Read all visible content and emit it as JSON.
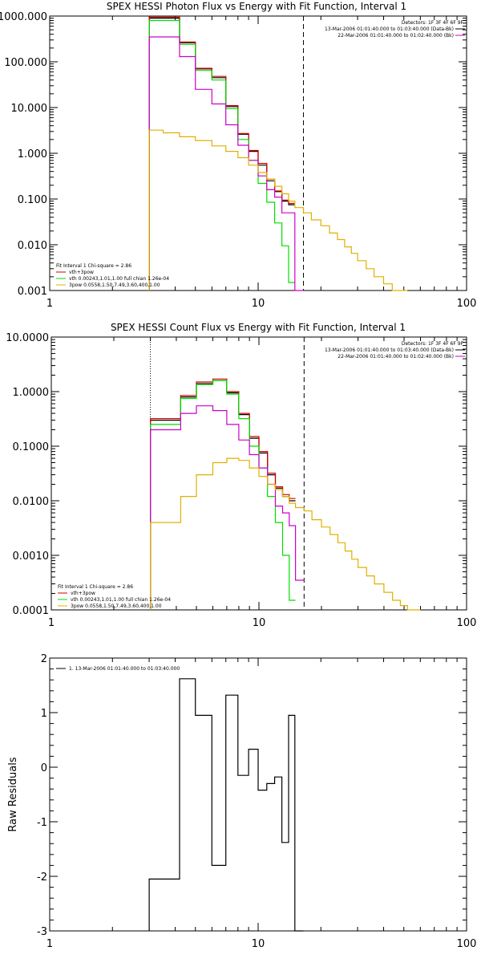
{
  "colors": {
    "background": "#ffffff",
    "axis": "#000000",
    "black": "#000000",
    "red": "#d40000",
    "green": "#00dd00",
    "magenta": "#cc00cc",
    "gold": "#e0b000",
    "orange": "#ff8c00"
  },
  "chart_data": [
    {
      "type": "line",
      "title": "SPEX HESSI Photon Flux vs Energy with Fit Function, Interval 1",
      "xlabel": "",
      "ylabel": "",
      "xscale": "log",
      "yscale": "log",
      "xlim": [
        1,
        100
      ],
      "ylim": [
        0.001,
        1000
      ],
      "x_ticks": [
        1,
        10,
        100
      ],
      "x_tick_labels": [
        "1",
        "10",
        "100"
      ],
      "y_ticks": [
        0.001,
        0.01,
        0.1,
        1,
        10,
        100,
        1000
      ],
      "y_tick_labels": [
        "0.001",
        "0.010",
        "0.100",
        "1.000",
        "10.000",
        "100.000",
        "1000.000"
      ],
      "legend_topright": [
        "Detectors: 1F 3F 4F 6F 9F",
        "13-Mar-2006 01:01:40.000 to 01:03:40.000 (Data-Bk)",
        "22-Mar-2006 01:01:40.000 to 01:02:40.000 (Bk)"
      ],
      "legend_bottomleft": [
        "Fit Interval 1   Chi-square = 2.86",
        "vth+3pow",
        "vth 0.00243,1.01,1.00  full chian 1.26e-04",
        "3pow 0.0558,1.50,7.49,3.60,400,1.00"
      ],
      "edges": [
        3,
        3.5,
        4.2,
        5,
        6,
        7,
        8,
        9,
        10,
        11,
        12,
        13,
        14,
        15,
        16.5,
        18,
        20,
        22,
        24,
        26,
        28,
        30,
        33,
        36,
        40,
        44,
        48,
        52
      ],
      "series": [
        {
          "color": "black",
          "values": [
            900,
            900,
            260,
            70,
            45,
            10.5,
            2.6,
            1.1,
            0.55,
            0.25,
            0.145,
            0.09,
            0.075,
            null
          ]
        },
        {
          "color": "red",
          "values": [
            950,
            950,
            270,
            72,
            48,
            11,
            2.7,
            1.15,
            0.6,
            0.27,
            0.15,
            0.095,
            0.08,
            null
          ]
        },
        {
          "color": "green",
          "values": [
            800,
            800,
            240,
            65,
            40,
            9.5,
            2.0,
            0.7,
            0.22,
            0.085,
            0.03,
            0.0095,
            0.0015,
            null
          ]
        },
        {
          "color": "magenta",
          "values": [
            350,
            350,
            130,
            25,
            12,
            4.2,
            1.5,
            0.7,
            0.32,
            0.16,
            0.11,
            0.05,
            0.05,
            0.001
          ]
        },
        {
          "color": "gold",
          "values": [
            3.2,
            2.8,
            2.3,
            1.9,
            1.45,
            1.1,
            0.8,
            0.55,
            0.38,
            0.27,
            0.19,
            0.13,
            0.09,
            0.065,
            0.05,
            0.035,
            0.026,
            0.018,
            0.013,
            0.009,
            0.0065,
            0.0045,
            0.003,
            0.002,
            0.0014,
            0.001,
            0.0008
          ]
        }
      ],
      "vlines": [
        {
          "x": 3,
          "style": "dotted"
        },
        {
          "x": 16.5,
          "style": "dashed"
        }
      ]
    },
    {
      "type": "line",
      "title": "SPEX HESSI Count Flux vs Energy with Fit Function, Interval 1",
      "xlabel": "",
      "ylabel": "",
      "xscale": "log",
      "yscale": "log",
      "xlim": [
        1,
        100
      ],
      "ylim": [
        0.0001,
        10
      ],
      "x_ticks": [
        1,
        10,
        100
      ],
      "x_tick_labels": [
        "1",
        "10",
        "100"
      ],
      "y_ticks": [
        0.0001,
        0.001,
        0.01,
        0.1,
        1,
        10
      ],
      "y_tick_labels": [
        "0.0001",
        "0.0010",
        "0.0100",
        "0.1000",
        "1.0000",
        "10.0000"
      ],
      "legend_topright": [
        "Detectors: 1F 3F 4F 6F 9F",
        "13-Mar-2006 01:01:40.000 to 01:03:40.000 (Data-Bk)",
        "22-Mar-2006 01:01:40.000 to 01:02:40.000 (Bk)"
      ],
      "legend_bottomleft": [
        "Fit Interval 1   Chi-square = 2.86",
        "vth+3pow",
        "vth 0.00243,1.01,1.00  full chian 1.26e-04",
        "3pow 0.0558,1.50,7.49,3.60,400,1.00"
      ],
      "edges": [
        3,
        3.5,
        4.2,
        5,
        6,
        7,
        8,
        9,
        10,
        11,
        12,
        13,
        14,
        15,
        16.5,
        18,
        20,
        22,
        24,
        26,
        28,
        30,
        33,
        36,
        40,
        44,
        48,
        52,
        56,
        60
      ],
      "series": [
        {
          "color": "black",
          "values": [
            0.3,
            0.3,
            0.8,
            1.4,
            1.6,
            0.95,
            0.38,
            0.14,
            0.075,
            0.03,
            0.017,
            0.012,
            0.01,
            null
          ]
        },
        {
          "color": "red",
          "values": [
            0.32,
            0.32,
            0.85,
            1.5,
            1.7,
            1.0,
            0.4,
            0.15,
            0.08,
            0.032,
            0.018,
            0.013,
            0.011,
            null
          ]
        },
        {
          "color": "green",
          "values": [
            0.25,
            0.25,
            0.75,
            1.35,
            1.6,
            0.9,
            0.32,
            0.1,
            0.04,
            0.012,
            0.004,
            0.001,
            0.00015,
            null
          ]
        },
        {
          "color": "magenta",
          "values": [
            0.2,
            0.2,
            0.4,
            0.55,
            0.45,
            0.25,
            0.13,
            0.07,
            0.04,
            0.02,
            0.008,
            0.006,
            0.0035,
            0.00035
          ]
        },
        {
          "color": "gold",
          "values": [
            0.004,
            0.004,
            0.012,
            0.03,
            0.05,
            0.06,
            0.055,
            0.04,
            0.028,
            0.02,
            0.016,
            0.012,
            0.009,
            0.0075,
            0.0065,
            0.0045,
            0.0033,
            0.0024,
            0.0017,
            0.0012,
            0.00085,
            0.0006,
            0.00042,
            0.0003,
            0.00021,
            0.00015,
            0.00012,
            0.0001,
            8e-05
          ]
        }
      ],
      "vlines": [
        {
          "x": 3,
          "style": "dotted"
        },
        {
          "x": 16.5,
          "style": "dashed"
        }
      ]
    },
    {
      "type": "line",
      "title": "",
      "xlabel": "",
      "ylabel": "Raw Residuals",
      "xscale": "log",
      "yscale": "linear",
      "xlim": [
        1,
        100
      ],
      "ylim": [
        -3,
        2
      ],
      "x_ticks": [
        1,
        10,
        100
      ],
      "x_tick_labels": [
        "1",
        "10",
        "100"
      ],
      "y_ticks": [
        -3,
        -2,
        -1,
        0,
        1,
        2
      ],
      "y_tick_labels": [
        "-3",
        "-2",
        "-1",
        "0",
        "1",
        "2"
      ],
      "legend_topleft": [
        "1. 13-Mar-2006 01:01:40.000 to 01:03:40.000"
      ],
      "edges": [
        3,
        3.5,
        4.2,
        5,
        6,
        7,
        8,
        9,
        10,
        11,
        12,
        13,
        14,
        15,
        16.5
      ],
      "series": [
        {
          "color": "black",
          "values": [
            -2.05,
            -2.05,
            1.62,
            0.95,
            -1.8,
            1.32,
            -0.15,
            0.33,
            -0.42,
            -0.3,
            -0.18,
            -1.38,
            0.95,
            -3.05
          ]
        }
      ]
    }
  ]
}
